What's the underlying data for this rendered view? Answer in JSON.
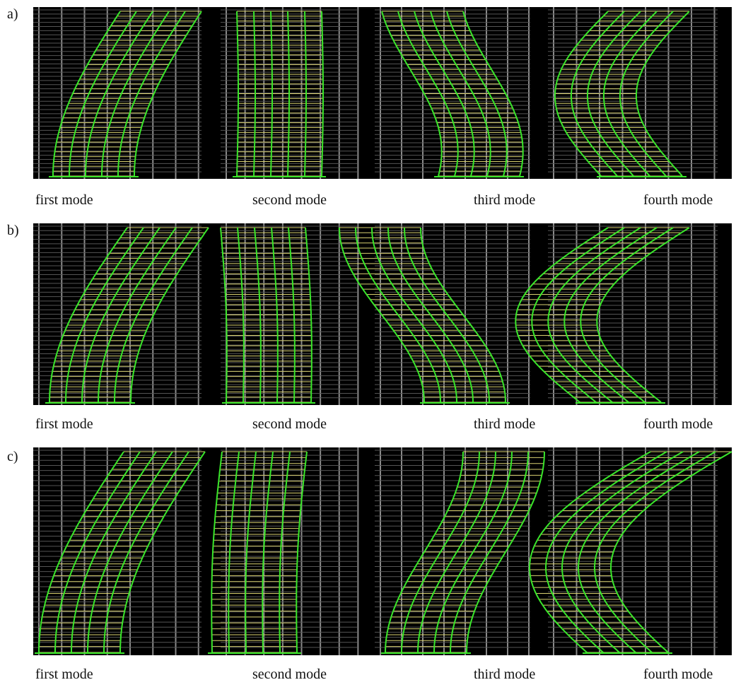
{
  "figure": {
    "rows": [
      {
        "label": "a)",
        "captions": [
          "first mode",
          "second mode",
          "third mode",
          "fourth mode"
        ]
      },
      {
        "label": "b)",
        "captions": [
          "first mode",
          "second mode",
          "third mode",
          "fourth mode"
        ]
      },
      {
        "label": "c)",
        "captions": [
          "first mode",
          "second mode",
          "third mode",
          "fourth mode"
        ]
      }
    ]
  }
}
